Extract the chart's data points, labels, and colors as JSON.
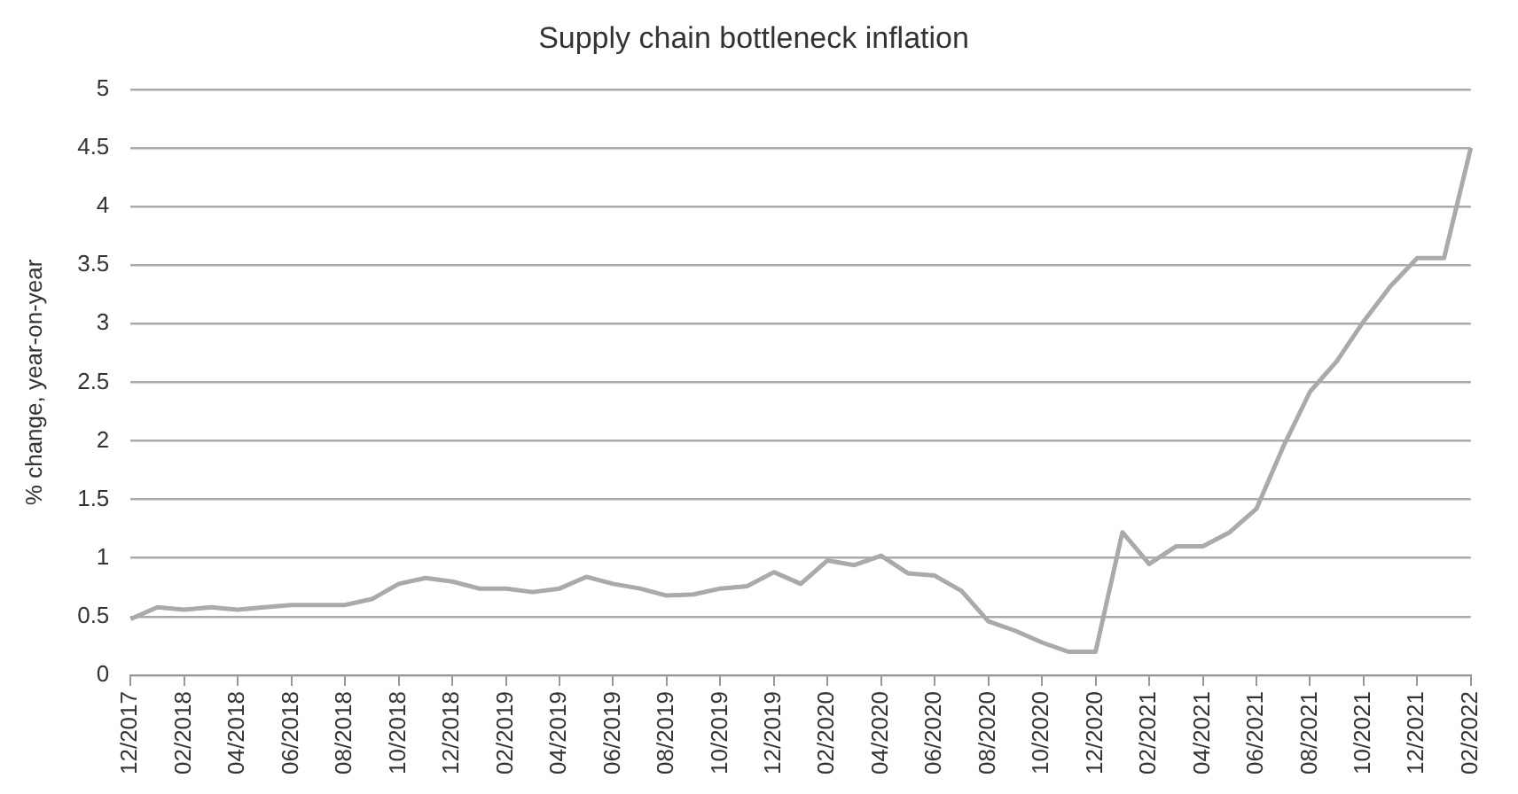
{
  "chart_data": {
    "type": "line",
    "title": "Supply chain bottleneck inflation",
    "ylabel": "% change, year-on-year",
    "categories": [
      "12/2017",
      null,
      "02/2018",
      null,
      "04/2018",
      null,
      "06/2018",
      null,
      "08/2018",
      null,
      "10/2018",
      null,
      "12/2018",
      null,
      "02/2019",
      null,
      "04/2019",
      null,
      "06/2019",
      null,
      "08/2019",
      null,
      "10/2019",
      null,
      "12/2019",
      null,
      "02/2020",
      null,
      "04/2020",
      null,
      "06/2020",
      null,
      "08/2020",
      null,
      "10/2020",
      null,
      "12/2020",
      null,
      "02/2021",
      null,
      "04/2021",
      null,
      "06/2021",
      null,
      "08/2021",
      null,
      "10/2021",
      null,
      "12/2021",
      null,
      "02/2022"
    ],
    "series": [
      {
        "color": "#aaaaaa",
        "values": [
          0.48,
          0.58,
          0.56,
          0.58,
          0.56,
          0.58,
          0.6,
          0.6,
          0.6,
          0.65,
          0.78,
          0.83,
          0.8,
          0.74,
          0.74,
          0.71,
          0.74,
          0.84,
          0.78,
          0.74,
          0.68,
          0.69,
          0.74,
          0.76,
          0.88,
          0.78,
          0.98,
          0.94,
          1.02,
          0.87,
          0.85,
          0.72,
          0.46,
          0.38,
          0.28,
          0.2,
          0.2,
          1.22,
          0.95,
          1.1,
          1.1,
          1.22,
          1.42,
          1.95,
          2.42,
          2.68,
          3.02,
          3.32,
          3.56,
          3.56,
          4.5
        ]
      }
    ],
    "ylim": [
      0,
      5
    ],
    "yticks": [
      0,
      0.5,
      1,
      1.5,
      2,
      2.5,
      3,
      3.5,
      4,
      4.5,
      5
    ],
    "grid": "y",
    "legend": false,
    "marker": "none",
    "line_style": "solid"
  }
}
